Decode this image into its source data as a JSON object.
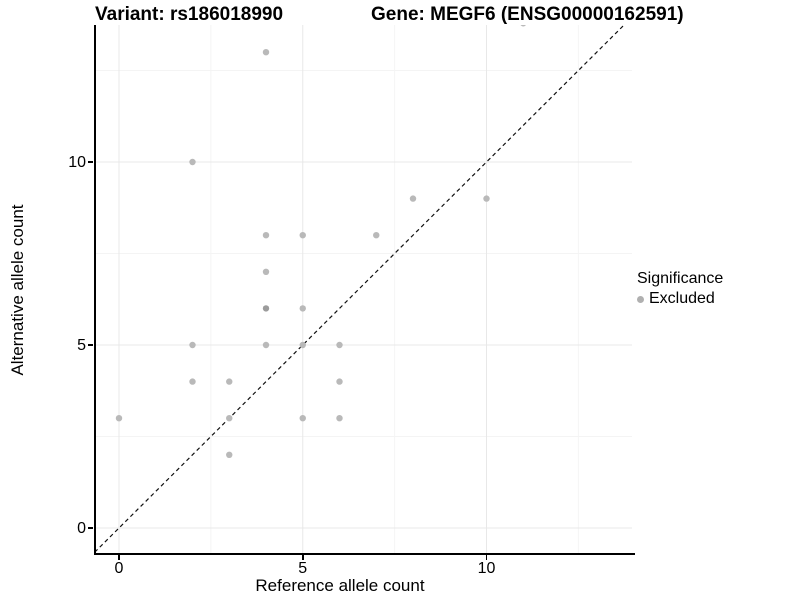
{
  "chart_data": {
    "type": "scatter",
    "titles": {
      "left": "Variant: rs186018990",
      "right": "Gene: MEGF6 (ENSG00000162591)"
    },
    "xlabel": "Reference allele count",
    "ylabel": "Alternative allele count",
    "xlim": [
      -0.7,
      13.95
    ],
    "ylim": [
      -0.7,
      13.75
    ],
    "x_major_ticks": [
      0,
      5,
      10
    ],
    "y_major_ticks": [
      0,
      5,
      10
    ],
    "x_minor_gridlines": [
      2.5,
      7.5,
      12.5
    ],
    "y_minor_gridlines": [
      2.5,
      7.5,
      12.5
    ],
    "grid": true,
    "identity_line": {
      "slope": 1,
      "intercept": 0,
      "style": "dashed",
      "color": "#111111"
    },
    "point_color": "#b9b9b9",
    "point_color_overlap": "#9c9c9c",
    "points": [
      {
        "x": 4,
        "y": 13
      },
      {
        "x": 11,
        "y": 13.79,
        "clipped": true
      },
      {
        "x": 2,
        "y": 10
      },
      {
        "x": 8,
        "y": 9
      },
      {
        "x": 10,
        "y": 9
      },
      {
        "x": 4,
        "y": 8
      },
      {
        "x": 5,
        "y": 8
      },
      {
        "x": 7,
        "y": 8
      },
      {
        "x": 4,
        "y": 7
      },
      {
        "x": 4,
        "y": 6,
        "overlap": true
      },
      {
        "x": 5,
        "y": 6
      },
      {
        "x": 2,
        "y": 5
      },
      {
        "x": 4,
        "y": 5
      },
      {
        "x": 5,
        "y": 5
      },
      {
        "x": 6,
        "y": 5
      },
      {
        "x": 2,
        "y": 4
      },
      {
        "x": 3,
        "y": 4
      },
      {
        "x": 6,
        "y": 4
      },
      {
        "x": 0,
        "y": 3
      },
      {
        "x": 3,
        "y": 3
      },
      {
        "x": 5,
        "y": 3
      },
      {
        "x": 6,
        "y": 3
      },
      {
        "x": 3,
        "y": 2
      }
    ],
    "legend": {
      "title": "Significance",
      "items": [
        {
          "label": "Excluded",
          "color": "#b0b0b0"
        }
      ]
    },
    "colors": {
      "major_gridline": "#e8e8e8",
      "minor_gridline": "#f4f4f4",
      "axis_line": "#000000"
    }
  }
}
